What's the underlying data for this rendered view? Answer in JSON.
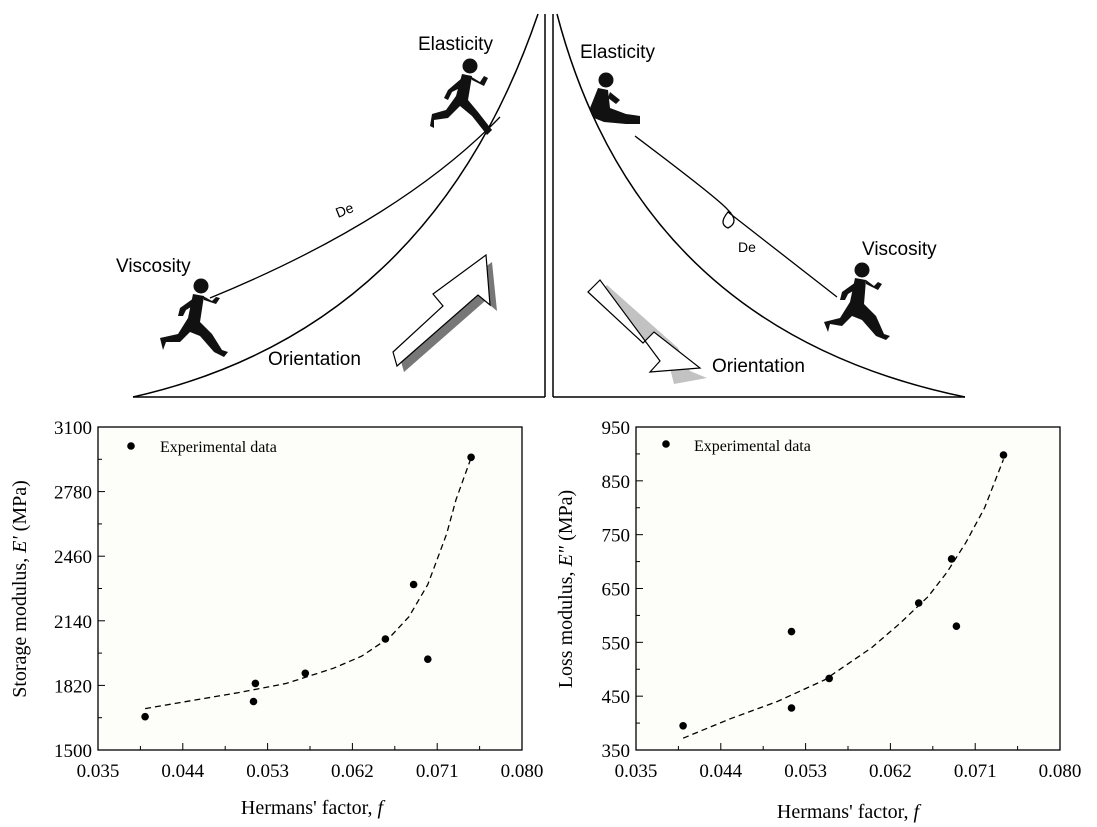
{
  "illustration": {
    "left_panel": {
      "top_label": "Elasticity",
      "bottom_label": "Viscosity",
      "mid_label": "De",
      "arrow_label": "Orientation"
    },
    "right_panel": {
      "top_label": "Elasticity",
      "bottom_label": "Viscosity",
      "mid_label": "De",
      "arrow_label": "Orientation"
    }
  },
  "chart_data": [
    {
      "type": "scatter",
      "title": "",
      "xlabel": "Hermans' factor, ",
      "xlabel_italic": "f",
      "ylabel": "Storage modulus, ",
      "ylabel_italic": "E'",
      "ylabel_unit": " (MPa)",
      "xlim": [
        0.035,
        0.08
      ],
      "ylim": [
        1500,
        3100
      ],
      "xticks": [
        "0.035",
        "0.044",
        "0.053",
        "0.062",
        "0.071",
        "0.080"
      ],
      "yticks": [
        "1500",
        "1820",
        "2140",
        "2460",
        "2780",
        "3100"
      ],
      "legend": "Experimental data",
      "legend_position": "top-left",
      "grid": false,
      "points": {
        "x": [
          0.04,
          0.0515,
          0.0517,
          0.057,
          0.0655,
          0.0685,
          0.07,
          0.0746
        ],
        "y": [
          1665,
          1740,
          1830,
          1880,
          2050,
          2320,
          1950,
          2950
        ]
      },
      "fit": {
        "style": "dashed",
        "x": [
          0.04,
          0.045,
          0.05,
          0.055,
          0.06,
          0.063,
          0.066,
          0.068,
          0.07,
          0.072,
          0.073,
          0.0745
        ],
        "y": [
          1705,
          1745,
          1785,
          1830,
          1905,
          1965,
          2060,
          2160,
          2320,
          2570,
          2740,
          2935
        ]
      }
    },
    {
      "type": "scatter",
      "title": "",
      "xlabel": "Hermans' factor, ",
      "xlabel_italic": "f",
      "ylabel": "Loss modulus, ",
      "ylabel_italic": "E\"",
      "ylabel_unit": " (MPa)",
      "xlim": [
        0.035,
        0.08
      ],
      "ylim": [
        350,
        950
      ],
      "xticks": [
        "0.035",
        "0.044",
        "0.053",
        "0.062",
        "0.071",
        "0.080"
      ],
      "yticks": [
        "350",
        "450",
        "550",
        "650",
        "750",
        "850",
        "950"
      ],
      "legend": "Experimental data",
      "legend_position": "top-left",
      "grid": false,
      "points": {
        "x": [
          0.04,
          0.0515,
          0.0515,
          0.0555,
          0.065,
          0.0685,
          0.069,
          0.074
        ],
        "y": [
          395,
          428,
          570,
          483,
          623,
          705,
          580,
          898
        ]
      },
      "fit": {
        "style": "dashed",
        "x": [
          0.04,
          0.045,
          0.05,
          0.055,
          0.06,
          0.063,
          0.066,
          0.068,
          0.07,
          0.072,
          0.074
        ],
        "y": [
          372,
          408,
          440,
          480,
          540,
          585,
          635,
          680,
          735,
          800,
          890
        ]
      }
    }
  ]
}
